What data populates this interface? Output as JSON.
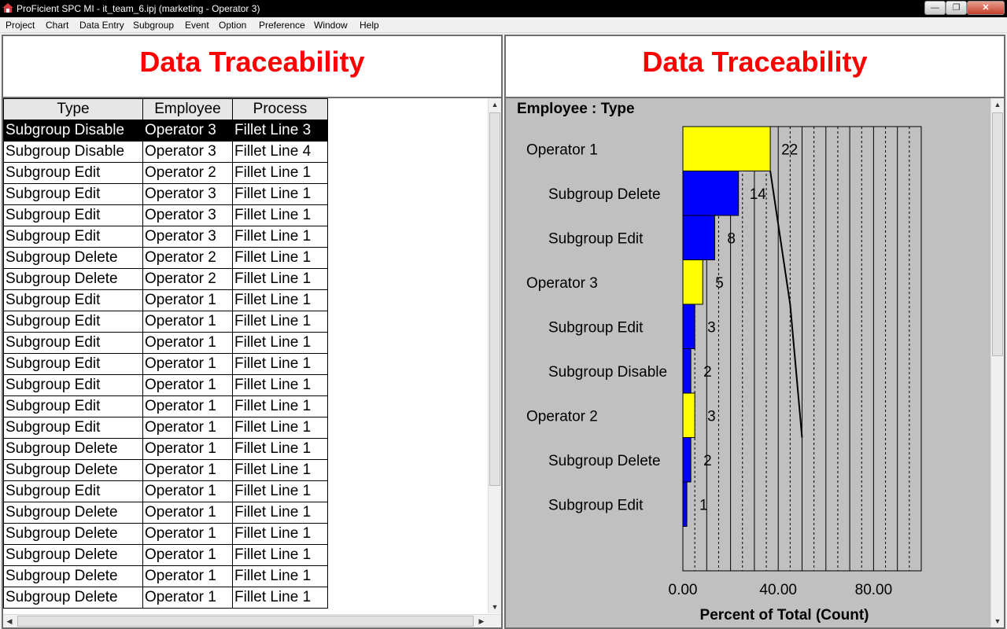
{
  "window": {
    "title": "ProFicient SPC MI - it_team_6.ipj (marketing - Operator 3)",
    "min_icon": "minimize-icon",
    "max_icon": "maximize-icon",
    "close_icon": "close-icon"
  },
  "menu": [
    "Project",
    "Chart",
    "Data Entry",
    "Subgroup",
    "Event",
    "Option",
    "Preference",
    "Window",
    "Help"
  ],
  "left_pane": {
    "title": "Data Traceability",
    "columns": [
      "Type",
      "Employee",
      "Process"
    ],
    "rows": [
      [
        "Subgroup Disable",
        "Operator 3",
        "Fillet Line 3"
      ],
      [
        "Subgroup Disable",
        "Operator 3",
        "Fillet Line 4"
      ],
      [
        "Subgroup Edit",
        "Operator 2",
        "Fillet Line 1"
      ],
      [
        "Subgroup Edit",
        "Operator 3",
        "Fillet Line 1"
      ],
      [
        "Subgroup Edit",
        "Operator 3",
        "Fillet Line 1"
      ],
      [
        "Subgroup Edit",
        "Operator 3",
        "Fillet Line 1"
      ],
      [
        "Subgroup Delete",
        "Operator 2",
        "Fillet Line 1"
      ],
      [
        "Subgroup Delete",
        "Operator 2",
        "Fillet Line 1"
      ],
      [
        "Subgroup Edit",
        "Operator 1",
        "Fillet Line 1"
      ],
      [
        "Subgroup Edit",
        "Operator 1",
        "Fillet Line 1"
      ],
      [
        "Subgroup Edit",
        "Operator 1",
        "Fillet Line 1"
      ],
      [
        "Subgroup Edit",
        "Operator 1",
        "Fillet Line 1"
      ],
      [
        "Subgroup Edit",
        "Operator 1",
        "Fillet Line 1"
      ],
      [
        "Subgroup Edit",
        "Operator 1",
        "Fillet Line 1"
      ],
      [
        "Subgroup Edit",
        "Operator 1",
        "Fillet Line 1"
      ],
      [
        "Subgroup Delete",
        "Operator 1",
        "Fillet Line 1"
      ],
      [
        "Subgroup Delete",
        "Operator 1",
        "Fillet Line 1"
      ],
      [
        "Subgroup Edit",
        "Operator 1",
        "Fillet Line 1"
      ],
      [
        "Subgroup Delete",
        "Operator 1",
        "Fillet Line 1"
      ],
      [
        "Subgroup Delete",
        "Operator 1",
        "Fillet Line 1"
      ],
      [
        "Subgroup Delete",
        "Operator 1",
        "Fillet Line 1"
      ],
      [
        "Subgroup Delete",
        "Operator 1",
        "Fillet Line 1"
      ],
      [
        "Subgroup Delete",
        "Operator 1",
        "Fillet Line 1"
      ]
    ],
    "selected_row": 0
  },
  "right_pane": {
    "title": "Data Traceability"
  },
  "chart_data": {
    "type": "bar",
    "orientation": "horizontal",
    "heading": "Employee : Type",
    "xlabel": "Percent of Total (Count)",
    "xticks": [
      "0.00",
      "40.00",
      "80.00"
    ],
    "xlim": [
      0,
      100
    ],
    "total": 60,
    "bars": [
      {
        "label": "Operator 1",
        "count": 22,
        "level": "employee"
      },
      {
        "label": "Subgroup Delete",
        "count": 14,
        "level": "type"
      },
      {
        "label": "Subgroup Edit",
        "count": 8,
        "level": "type"
      },
      {
        "label": "Operator 3",
        "count": 5,
        "level": "employee"
      },
      {
        "label": "Subgroup Edit",
        "count": 3,
        "level": "type"
      },
      {
        "label": "Subgroup Disable",
        "count": 2,
        "level": "type"
      },
      {
        "label": "Operator 2",
        "count": 3,
        "level": "employee"
      },
      {
        "label": "Subgroup Delete",
        "count": 2,
        "level": "type"
      },
      {
        "label": "Subgroup Edit",
        "count": 1,
        "level": "type"
      }
    ],
    "cumulative_line": true,
    "colors": {
      "employee": "#ffff00",
      "type": "#0000ff",
      "background": "#c0c0c0",
      "title": "#ff0000"
    }
  }
}
